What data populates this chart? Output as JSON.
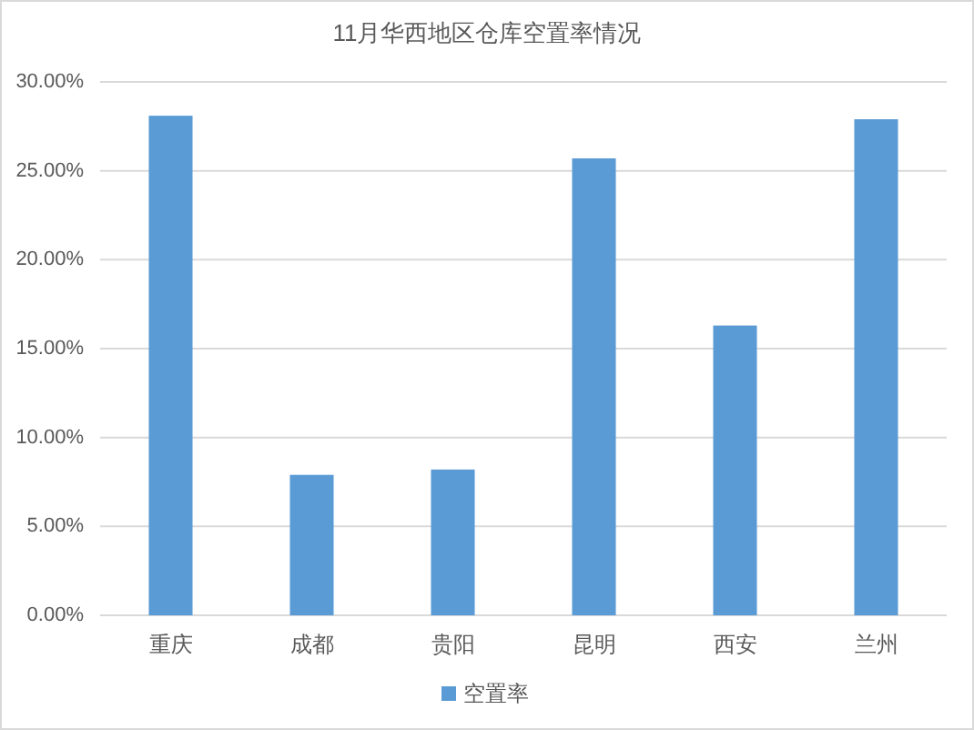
{
  "chart_data": {
    "type": "bar",
    "title": "11月华西地区仓库空置率情况",
    "categories": [
      "重庆",
      "成都",
      "贵阳",
      "昆明",
      "西安",
      "兰州"
    ],
    "series": [
      {
        "name": "空置率",
        "color": "#5b9bd5",
        "values": [
          28.1,
          7.9,
          8.2,
          25.7,
          16.3,
          27.9
        ]
      }
    ],
    "ylim": [
      0,
      30
    ],
    "yticks": [
      {
        "value": 0,
        "label": "0.00%"
      },
      {
        "value": 5,
        "label": "5.00%"
      },
      {
        "value": 10,
        "label": "10.00%"
      },
      {
        "value": 15,
        "label": "15.00%"
      },
      {
        "value": 20,
        "label": "20.00%"
      },
      {
        "value": 25,
        "label": "25.00%"
      },
      {
        "value": 30,
        "label": "30.00%"
      }
    ],
    "grid": "y",
    "legend": "bottom"
  }
}
